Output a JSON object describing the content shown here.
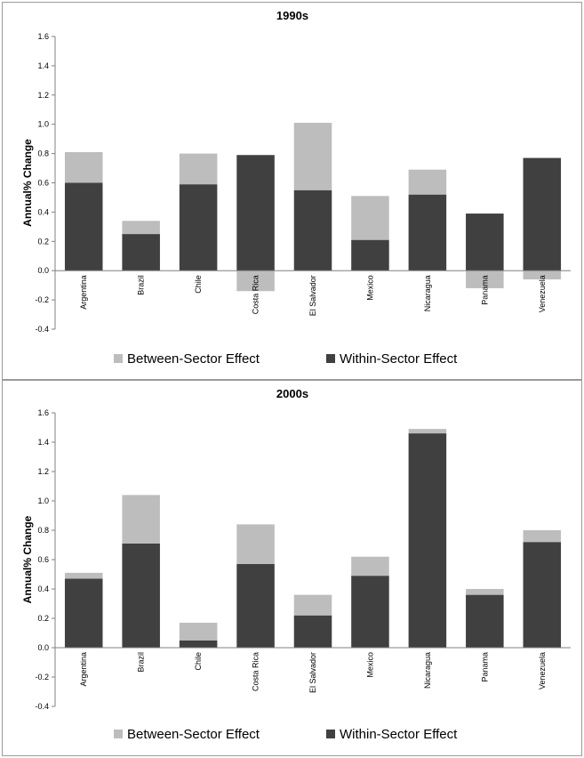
{
  "colors": {
    "between": "#bdbdbd",
    "within": "#404040",
    "axis": "#808080"
  },
  "chart_data": [
    {
      "type": "bar",
      "stacked": true,
      "title": "1990s",
      "ylabel": "Annual% Change",
      "ylim": [
        -0.4,
        1.6
      ],
      "yticks": [
        "1.6",
        "1.4",
        "1.2",
        "1.0",
        "0.8",
        "0.6",
        "0.4",
        "0.2",
        "0.0",
        "-0.2",
        "-0.4"
      ],
      "categories": [
        "Argentina",
        "Brazil",
        "Chile",
        "Costa Rica",
        "El Salvador",
        "Mexico",
        "Nicaragua",
        "Panama",
        "Venezuela"
      ],
      "series": [
        {
          "name": "Between-Sector Effect",
          "values": [
            0.21,
            0.09,
            0.21,
            -0.14,
            0.46,
            0.3,
            0.17,
            -0.12,
            -0.06
          ]
        },
        {
          "name": "Within-Sector Effect",
          "values": [
            0.6,
            0.25,
            0.59,
            0.79,
            0.55,
            0.21,
            0.52,
            0.39,
            0.77
          ]
        }
      ],
      "legend_position": "bottom"
    },
    {
      "type": "bar",
      "stacked": true,
      "title": "2000s",
      "ylabel": "Annual% Change",
      "ylim": [
        -0.4,
        1.6
      ],
      "yticks": [
        "1.6",
        "1.4",
        "1.2",
        "1.0",
        "0.8",
        "0.6",
        "0.4",
        "0.2",
        "0.0",
        "-0.2",
        "-0.4"
      ],
      "categories": [
        "Argentina",
        "Brazil",
        "Chile",
        "Costa Rica",
        "El Salvador",
        "Mexico",
        "Nicaragua",
        "Panama",
        "Venezuela"
      ],
      "series": [
        {
          "name": "Between-Sector Effect",
          "values": [
            0.04,
            0.33,
            0.12,
            0.27,
            0.14,
            0.13,
            0.03,
            0.04,
            0.08
          ]
        },
        {
          "name": "Within-Sector Effect",
          "values": [
            0.47,
            0.71,
            0.05,
            0.57,
            0.22,
            0.49,
            1.46,
            0.36,
            0.72
          ]
        }
      ],
      "legend_position": "bottom"
    }
  ]
}
